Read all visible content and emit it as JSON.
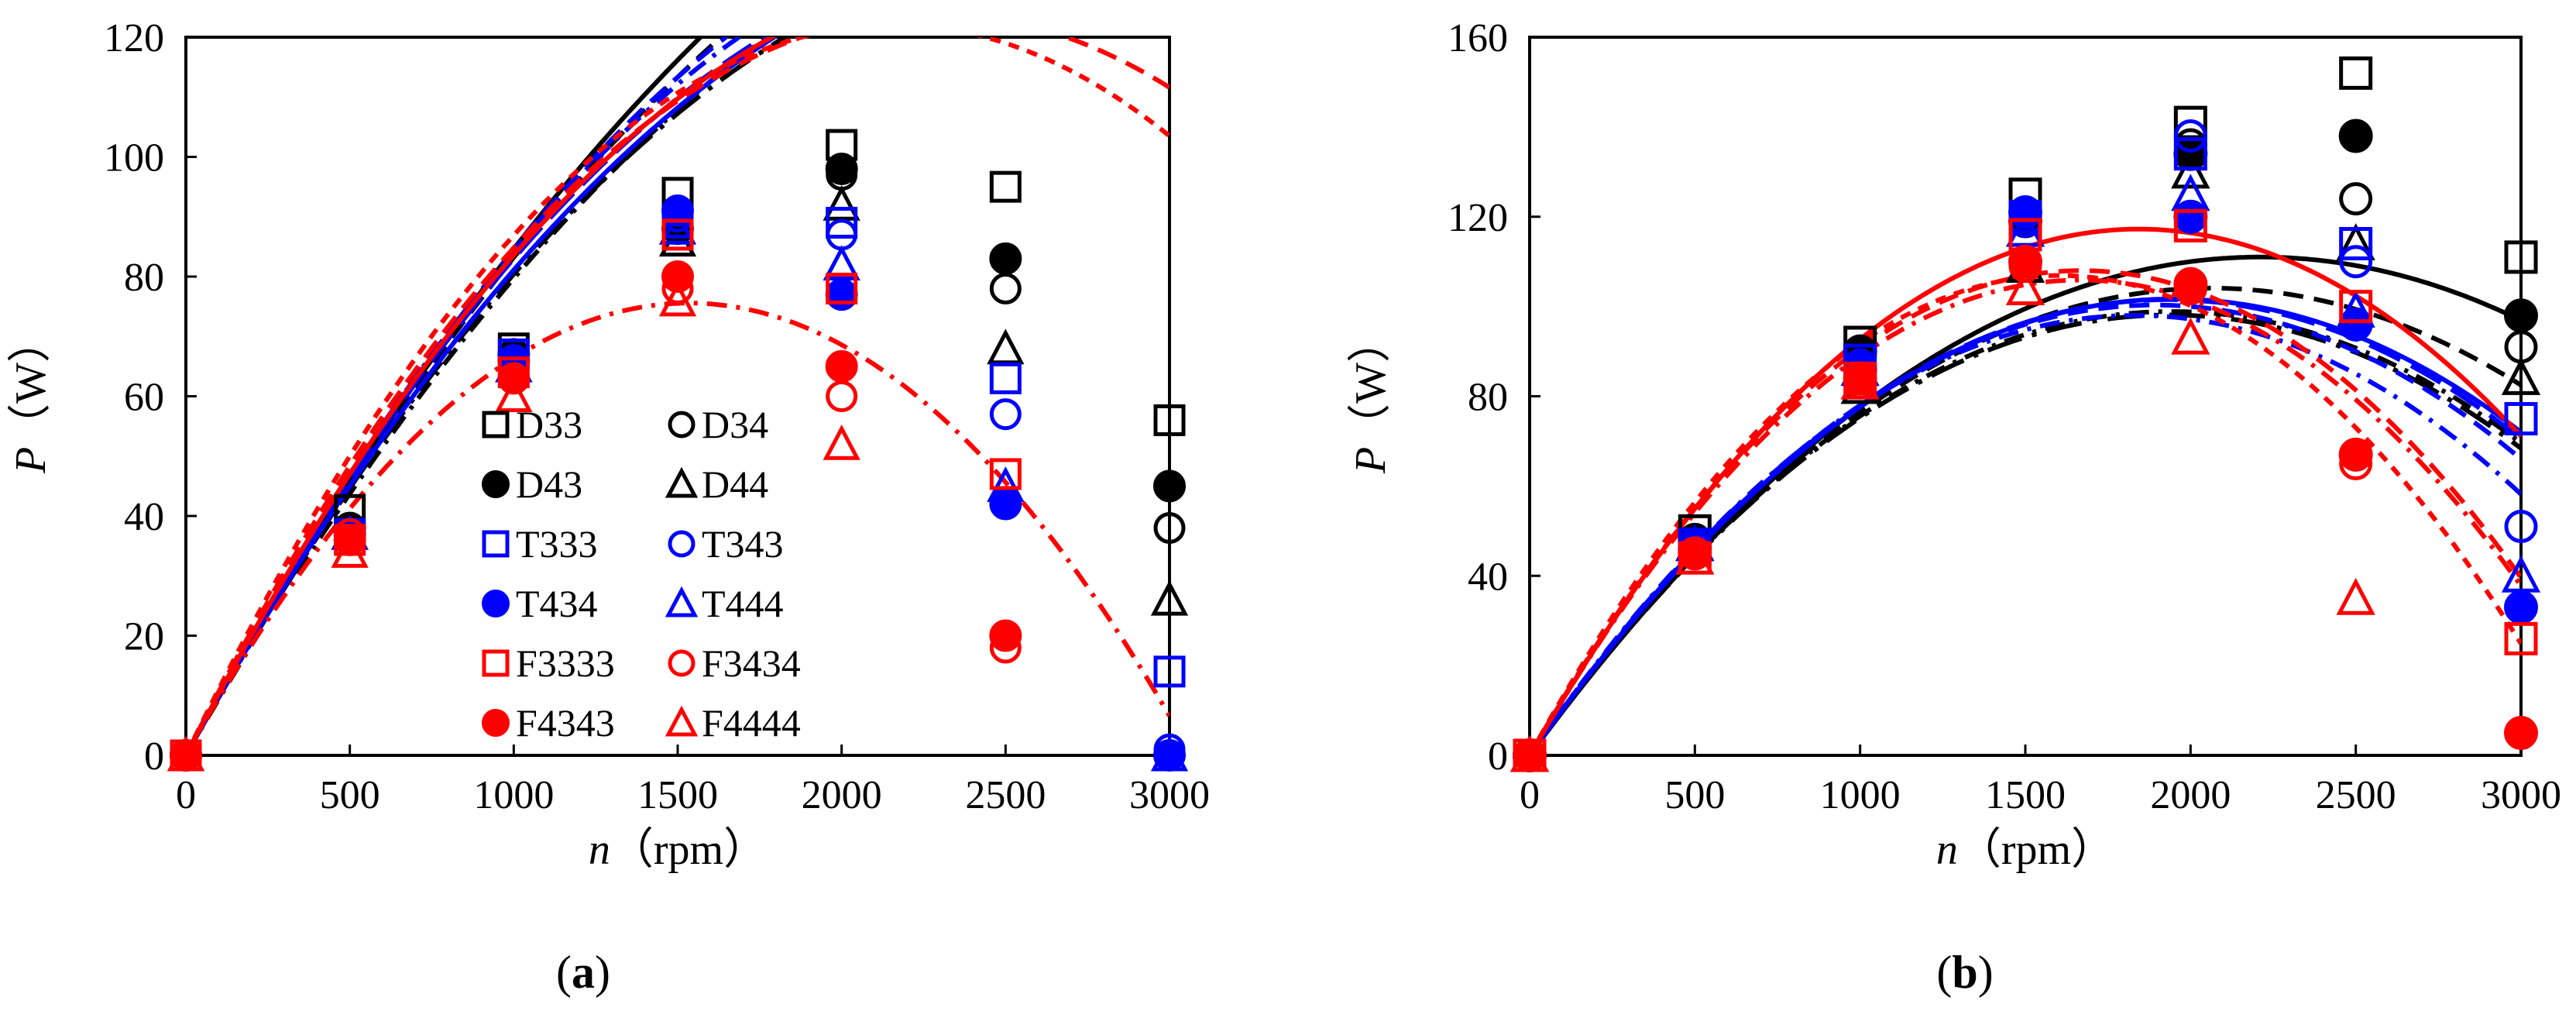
{
  "figure": {
    "panels": [
      {
        "label_open": "(",
        "label_letter": "a",
        "label_close": ")"
      },
      {
        "label_open": "(",
        "label_letter": "b",
        "label_close": ")"
      }
    ]
  },
  "styles": {
    "colors": {
      "black": "#000000",
      "blue": "#0000ff",
      "red": "#ff0000"
    }
  },
  "chart_data": [
    {
      "type": "scatter",
      "panel": "a",
      "xlabel_var": "n",
      "xlabel_unit": "（rpm）",
      "ylabel_var": "P",
      "ylabel_unit": "（W）",
      "xlim": [
        0,
        3000
      ],
      "ylim": [
        0,
        120
      ],
      "xticks": [
        0,
        500,
        1000,
        1500,
        2000,
        2500,
        3000
      ],
      "yticks": [
        0,
        20,
        40,
        60,
        80,
        100,
        120
      ],
      "grid": false,
      "legend": {
        "placement": "center-left",
        "columns": 2
      },
      "series": [
        {
          "name": "D33",
          "color": "black",
          "marker": "square-open",
          "line": "solid",
          "x": [
            0,
            500,
            1000,
            1500,
            2000,
            2500,
            3000
          ],
          "y": [
            0,
            41,
            68,
            94,
            102,
            95,
            56
          ],
          "fit": [
            0,
            0.0989,
            1.43e-05
          ]
        },
        {
          "name": "D34",
          "color": "black",
          "marker": "circle-open",
          "line": "dash",
          "x": [
            0,
            500,
            1000,
            1500,
            2000,
            2500,
            3000
          ],
          "y": [
            0,
            38,
            67,
            89,
            97,
            78,
            38
          ],
          "fit": [
            0,
            0.0985,
            1.53e-05
          ]
        },
        {
          "name": "D43",
          "color": "black",
          "marker": "circle-filled",
          "line": "dashdot",
          "x": [
            0,
            500,
            1000,
            1500,
            2000,
            2500,
            3000
          ],
          "y": [
            0,
            38,
            67,
            88,
            98,
            83,
            45
          ],
          "fit": [
            0,
            0.0952,
            1.55e-05
          ]
        },
        {
          "name": "D44",
          "color": "black",
          "marker": "triangle-open",
          "line": "longdashdot",
          "x": [
            0,
            500,
            1000,
            1500,
            2000,
            2500,
            3000
          ],
          "y": [
            0,
            37,
            65,
            86,
            92,
            68,
            26
          ],
          "fit": [
            0,
            0.0982,
            1.78e-05
          ]
        },
        {
          "name": "T333",
          "color": "blue",
          "marker": "square-open",
          "line": "dash",
          "x": [
            0,
            500,
            1000,
            1500,
            2000,
            2500,
            3000
          ],
          "y": [
            0,
            37,
            67,
            89,
            89,
            63,
            14
          ],
          "fit": [
            0,
            0.103,
            1.83e-05
          ]
        },
        {
          "name": "T343",
          "color": "blue",
          "marker": "circle-open",
          "line": "longdash",
          "x": [
            0,
            500,
            1000,
            1500,
            2000,
            2500,
            3000
          ],
          "y": [
            0,
            36,
            66,
            90,
            87,
            57,
            1
          ],
          "fit": [
            0,
            0.1026,
            1.96e-05
          ]
        },
        {
          "name": "T434",
          "color": "blue",
          "marker": "circle-filled",
          "line": "solid",
          "x": [
            0,
            500,
            1000,
            1500,
            2000,
            2500,
            3000
          ],
          "y": [
            0,
            37,
            66,
            91,
            77,
            42,
            0
          ],
          "fit": [
            0,
            0.099,
            1.79e-05
          ]
        },
        {
          "name": "T444",
          "color": "blue",
          "marker": "triangle-open",
          "line": "dashdot",
          "x": [
            0,
            500,
            1000,
            1500,
            2000,
            2500,
            3000
          ],
          "y": [
            0,
            37,
            65,
            88,
            82,
            45,
            0
          ],
          "fit": [
            0,
            0.1037,
            1.93e-05
          ]
        },
        {
          "name": "F3333",
          "color": "red",
          "marker": "square-open",
          "line": "solid",
          "x": [
            0,
            500,
            1000,
            1500,
            2000,
            2500
          ],
          "y": [
            0,
            36,
            64,
            87,
            78,
            47
          ],
          "fit": [
            0,
            0.1045,
            2.09e-05
          ]
        },
        {
          "name": "F3434",
          "color": "red",
          "marker": "circle-open",
          "line": "dash",
          "x": [
            0,
            500,
            1000,
            1500,
            2000,
            2500
          ],
          "y": [
            0,
            37,
            63,
            78,
            60,
            18
          ],
          "fit": [
            0,
            0.1086,
            2.38e-05
          ]
        },
        {
          "name": "F4343",
          "color": "red",
          "marker": "circle-filled",
          "line": "shortdash",
          "x": [
            0,
            500,
            1000,
            1500,
            2000,
            2500
          ],
          "y": [
            0,
            36,
            63,
            80,
            65,
            20
          ],
          "fit": [
            0,
            0.1131,
            2.62e-05
          ]
        },
        {
          "name": "F4444",
          "color": "red",
          "marker": "triangle-open",
          "line": "dashdot",
          "x": [
            0,
            500,
            1000,
            1500,
            2000
          ],
          "y": [
            0,
            34,
            60,
            76,
            52
          ],
          "fit": [
            0,
            0.0985,
            3.21e-05
          ]
        }
      ]
    },
    {
      "type": "scatter",
      "panel": "b",
      "xlabel_var": "n",
      "xlabel_unit": "（rpm）",
      "ylabel_var": "P",
      "ylabel_unit": "（W）",
      "xlim": [
        0,
        3000
      ],
      "ylim": [
        0,
        160
      ],
      "xticks": [
        0,
        500,
        1000,
        1500,
        2000,
        2500,
        3000
      ],
      "yticks": [
        0,
        40,
        80,
        120,
        160
      ],
      "grid": false,
      "legend": null,
      "series": [
        {
          "name": "D33",
          "color": "black",
          "marker": "square-open",
          "line": "solid",
          "x": [
            0,
            500,
            1000,
            1500,
            2000,
            2500,
            3000
          ],
          "y": [
            0,
            50,
            92,
            125,
            141,
            152,
            111
          ],
          "fit": [
            0,
            0.1004,
            2.27e-05
          ]
        },
        {
          "name": "D34",
          "color": "black",
          "marker": "circle-open",
          "line": "dash",
          "x": [
            0,
            500,
            1000,
            1500,
            2000,
            2500,
            3000
          ],
          "y": [
            0,
            48,
            90,
            121,
            136,
            124,
            91
          ],
          "fit": [
            0,
            0.101,
            2.45e-05
          ]
        },
        {
          "name": "D43",
          "color": "black",
          "marker": "circle-filled",
          "line": "dashdot",
          "x": [
            0,
            500,
            1000,
            1500,
            2000,
            2500,
            3000
          ],
          "y": [
            0,
            48,
            90,
            119,
            134,
            138,
            98
          ],
          "fit": [
            0,
            0.1018,
            2.62e-05
          ]
        },
        {
          "name": "D44",
          "color": "black",
          "marker": "triangle-open",
          "line": "longdashdot",
          "x": [
            0,
            500,
            1000,
            1500,
            2000,
            2500,
            3000
          ],
          "y": [
            0,
            47,
            82,
            109,
            130,
            114,
            84
          ],
          "fit": [
            0,
            0.1014,
            2.62e-05
          ]
        },
        {
          "name": "T333",
          "color": "blue",
          "marker": "square-open",
          "line": "dash",
          "x": [
            0,
            500,
            1000,
            1500,
            2000,
            2500,
            3000
          ],
          "y": [
            0,
            47,
            88,
            120,
            134,
            114,
            75
          ],
          "fit": [
            0,
            0.106,
            2.8e-05
          ]
        },
        {
          "name": "T343",
          "color": "blue",
          "marker": "circle-open",
          "line": "longdash",
          "x": [
            0,
            500,
            1000,
            1500,
            2000,
            2500,
            3000
          ],
          "y": [
            0,
            47,
            87,
            119,
            138,
            110,
            51
          ],
          "fit": [
            0,
            0.1051,
            2.72e-05
          ]
        },
        {
          "name": "T434",
          "color": "blue",
          "marker": "circle-filled",
          "line": "solid",
          "x": [
            0,
            500,
            1000,
            1500,
            2000,
            2500,
            3000
          ],
          "y": [
            0,
            46,
            86,
            121,
            120,
            96,
            33
          ],
          "fit": [
            0,
            0.1044,
            2.68e-05
          ]
        },
        {
          "name": "T444",
          "color": "blue",
          "marker": "triangle-open",
          "line": "dashdot",
          "x": [
            0,
            500,
            1000,
            1500,
            2000,
            2500,
            3000
          ],
          "y": [
            0,
            47,
            86,
            117,
            125,
            99,
            40
          ],
          "fit": [
            0,
            0.107,
            2.92e-05
          ]
        },
        {
          "name": "F3333",
          "color": "red",
          "marker": "square-open",
          "line": "solid",
          "x": [
            0,
            500,
            1000,
            1500,
            2000,
            2500,
            3000
          ],
          "y": [
            0,
            44,
            84,
            116,
            118,
            100,
            26
          ],
          "fit": [
            0,
            0.1272,
            3.45e-05
          ]
        },
        {
          "name": "F3434",
          "color": "red",
          "marker": "circle-open",
          "line": "dash",
          "x": [
            0,
            500,
            1000,
            1500,
            2000,
            2500
          ],
          "y": [
            0,
            45,
            83,
            109,
            104,
            65
          ],
          "fit": [
            0,
            0.1293,
            3.87e-05
          ]
        },
        {
          "name": "F4343",
          "color": "red",
          "marker": "circle-filled",
          "line": "shortdash",
          "x": [
            0,
            500,
            1000,
            1500,
            2000,
            2500,
            3000
          ],
          "y": [
            0,
            45,
            84,
            110,
            105,
            67,
            5
          ],
          "fit": [
            0,
            0.1337,
            4.18e-05
          ]
        },
        {
          "name": "F4444",
          "color": "red",
          "marker": "triangle-open",
          "line": "dashdot",
          "x": [
            0,
            500,
            1000,
            1500,
            2000,
            2500
          ],
          "y": [
            0,
            44,
            83,
            104,
            93,
            35
          ],
          "fit": [
            0,
            0.1272,
            3.82e-05
          ]
        }
      ]
    }
  ]
}
